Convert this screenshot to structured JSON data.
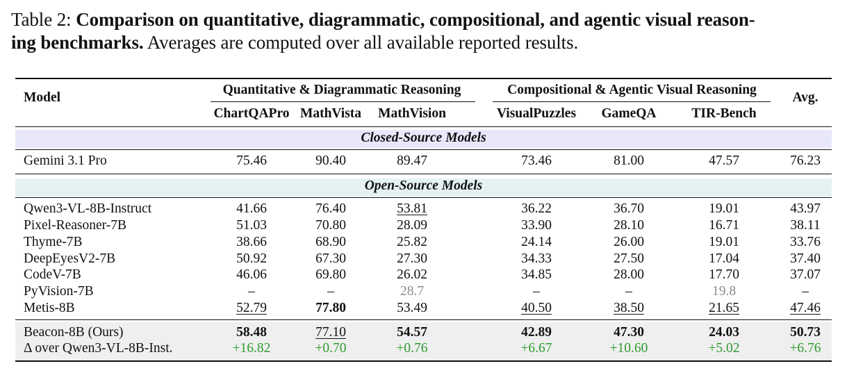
{
  "caption": {
    "label": "Table 2:",
    "title": "Comparison on quantitative, diagrammatic, compositional, and agentic visual reason-",
    "title_cont": "ing benchmarks.",
    "rest": "Averages are computed over all available reported results."
  },
  "header": {
    "model": "Model",
    "group1": "Quantitative & Diagrammatic Reasoning",
    "group2": "Compositional & Agentic Visual Reasoning",
    "avg": "Avg.",
    "columns": [
      "ChartQAPro",
      "MathVista",
      "MathVision",
      "VisualPuzzles",
      "GameQA",
      "TIR-Bench"
    ]
  },
  "sections": {
    "closed": "Closed-Source Models",
    "open": "Open-Source Models"
  },
  "colors": {
    "closed_band": "#e8e8fa",
    "open_band": "#e6f2f2",
    "ours_band": "#efefef",
    "delta_green": "#2e9a2e",
    "unavailable_gray": "#8a8a8a"
  },
  "closed_rows": [
    {
      "model": "Gemini 3.1 Pro",
      "values": [
        "75.46",
        "90.40",
        "89.47",
        "73.46",
        "81.00",
        "47.57",
        "76.23"
      ]
    }
  ],
  "open_rows": [
    {
      "model": "Qwen3-VL-8B-Instruct",
      "values": [
        "41.66",
        "76.40",
        "53.81",
        "36.22",
        "36.70",
        "19.01",
        "43.97"
      ]
    },
    {
      "model": "Pixel-Reasoner-7B",
      "values": [
        "51.03",
        "70.80",
        "28.09",
        "33.90",
        "28.10",
        "16.71",
        "38.11"
      ]
    },
    {
      "model": "Thyme-7B",
      "values": [
        "38.66",
        "68.90",
        "25.82",
        "24.14",
        "26.00",
        "19.01",
        "33.76"
      ]
    },
    {
      "model": "DeepEyesV2-7B",
      "values": [
        "50.92",
        "67.30",
        "27.30",
        "34.33",
        "27.50",
        "17.04",
        "37.40"
      ]
    },
    {
      "model": "CodeV-7B",
      "values": [
        "46.06",
        "69.80",
        "26.02",
        "34.85",
        "28.00",
        "17.70",
        "37.07"
      ]
    },
    {
      "model": "PyVision-7B",
      "values": [
        "–",
        "–",
        "28.7",
        "–",
        "–",
        "19.8",
        "–"
      ]
    },
    {
      "model": "Metis-8B",
      "values": [
        "52.79",
        "77.80",
        "53.49",
        "40.50",
        "38.50",
        "21.65",
        "47.46"
      ]
    }
  ],
  "ours": {
    "model": "Beacon-8B (Ours)",
    "values": [
      "58.48",
      "77.10",
      "54.57",
      "42.89",
      "47.30",
      "24.03",
      "50.73"
    ]
  },
  "delta": {
    "model": "Δ over Qwen3-VL-8B-Inst.",
    "values": [
      "+16.82",
      "+0.70",
      "+0.76",
      "+6.67",
      "+10.60",
      "+5.02",
      "+6.76"
    ]
  }
}
